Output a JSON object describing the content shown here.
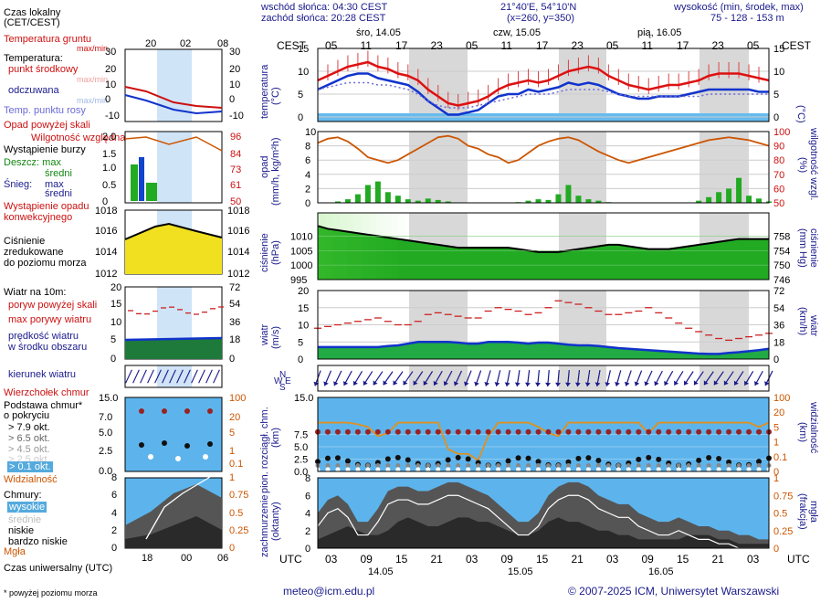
{
  "header": {
    "sunrise": "wschód słońca: 04:30 CEST",
    "sunset": "zachód słońca: 20:28 CEST",
    "coords": "21°40'E, 54°10'N",
    "grid": "(x=260, y=350)",
    "elev_title": "wysokość (min, środek, max)",
    "elev_values": "75 - 128 - 153 m",
    "tz_left": "CEST",
    "tz_right": "CEST",
    "days": [
      "śro, 14.05",
      "czw, 15.05",
      "pią, 16.05"
    ],
    "top_hours": [
      "05",
      "11",
      "17",
      "23",
      "05",
      "11",
      "17",
      "23",
      "05",
      "11",
      "17",
      "23",
      "05"
    ],
    "bottom_hours": [
      "03",
      "09",
      "15",
      "21",
      "03",
      "09",
      "15",
      "21",
      "03",
      "09",
      "15",
      "21",
      "03"
    ],
    "bottom_days": [
      "14.05",
      "15.05",
      "16.05"
    ],
    "utc_left": "UTC",
    "utc_right": "UTC"
  },
  "legend": {
    "local_time": "Czas lokalny",
    "local_time2": "(CET/CEST)",
    "local_hours": [
      "20",
      "02",
      "08"
    ],
    "ground_temp": "Temperatura gruntu",
    "maxmin": "max/min",
    "temperature": "Temperatura:",
    "center_point": "punkt środkowy",
    "maxmin2": "max/min",
    "felt": "odczuwana",
    "maxmin3": "max/min",
    "dew": "Temp. punktu rosy",
    "precip_above": "Opad powyżej skali",
    "humidity": "Wilgotność względna",
    "storm": "Wystąpienie burzy",
    "rain": "Deszcz: max",
    "rain_mid": "średni",
    "snow": "Śnieg:",
    "snow_max": "max",
    "snow_mid": "średni",
    "convective": "Wystąpienie opadu",
    "convective2": "konwekcyjnego",
    "pressure1": "Ciśnienie",
    "pressure2": "zredukowane",
    "pressure3": "do poziomu morza",
    "wind_title": "Wiatr na 10m:",
    "gust_above": "poryw powyżej skali",
    "gust_max": "max porywy wiatru",
    "wind_speed": "prędkość wiatru",
    "wind_speed2": "w środku obszaru",
    "wind_dir": "kierunek wiatru",
    "cloud_top": "Wierzchołek chmur",
    "cloud_base": "Podstawa chmur*",
    "cover": "o pokryciu",
    "okt79": "> 7.9 okt.",
    "okt65": "> 6.5 okt.",
    "okt45": "> 4.5 okt.",
    "okt25": "> 2.5 okt.",
    "okt01": "> 0.1 okt.",
    "visibility": "Widzialność",
    "clouds": "Chmury:",
    "high": "wysokie",
    "mid": "średnie",
    "low": "niskie",
    "very_low": "bardzo niskie",
    "fog": "Mgła",
    "utc": "Czas uniwersalny (UTC)",
    "utc_hours": [
      "18",
      "00",
      "06"
    ],
    "footnote": "* powyżej poziomu morza"
  },
  "axis_labels": {
    "temp_l": "temperatura",
    "temp_l2": "(°C)",
    "temp_r": "(°C)",
    "precip_l": "opad",
    "precip_l2": "(mm/h, kg/m²h)",
    "precip_r": "(%)",
    "precip_r2": "wilgotność wzgl.",
    "press_l": "ciśnienie",
    "press_l2": "(hPa)",
    "press_r": "(mm Hg)",
    "press_r2": "ciśnienie",
    "wind_l": "wiatr",
    "wind_l2": "(m/s)",
    "wind_r": "(km/h)",
    "wind_r2": "wiatr",
    "cloud_l": "pion. rozciągł. chm.",
    "cloud_l2": "(km)",
    "cloud_r": "(km)",
    "cloud_r2": "widzialność",
    "cov_l": "zachmurzenie",
    "cov_l2": "(oktanty)",
    "cov_r": "(frakcja)",
    "cov_r2": "mgła"
  },
  "footer": {
    "email": "meteo@icm.edu.pl",
    "copyright": "© 2007-2025 ICM, Uniwersytet Warszawski"
  },
  "colors": {
    "navy": "#1a1a8c",
    "red": "#cc1111",
    "green": "#118811",
    "orange": "#cc5500",
    "sky": "#66bbee",
    "night": "#d8d8d8"
  },
  "chart_data": [
    {
      "type": "line",
      "name": "temperature",
      "ylim": [
        -1,
        15
      ],
      "yticks": [
        0,
        5,
        10,
        15
      ],
      "series": [
        {
          "values": [
            8,
            9,
            10,
            11,
            11.5,
            12,
            11,
            10.5,
            9.5,
            9,
            8,
            6,
            4.5,
            3,
            2.5,
            3,
            3.5,
            4.5,
            6,
            7,
            7.5,
            8,
            7.5,
            8,
            9,
            10,
            10.5,
            11,
            10.5,
            9,
            8,
            7,
            6.5,
            6,
            6.5,
            7,
            7,
            7.5,
            8,
            9,
            9.5,
            9.5,
            9.5,
            9,
            8.5,
            8
          ]
        },
        {
          "values": [
            6,
            7,
            8,
            9,
            9.5,
            9.5,
            8.5,
            8,
            7.5,
            7,
            5.5,
            3.5,
            2,
            0.5,
            0.5,
            1,
            1.5,
            3,
            4.5,
            5,
            5,
            6,
            5.5,
            6,
            6.5,
            7.5,
            7,
            7.5,
            7,
            6,
            5,
            4.5,
            4,
            4,
            4.5,
            4.5,
            4.5,
            5,
            5.5,
            6,
            6,
            6,
            6,
            6,
            5.5,
            5.5
          ]
        },
        {
          "values": [
            6,
            6.5,
            7,
            7.5,
            7.5,
            7.5,
            7,
            7,
            6.5,
            6,
            5,
            3.5,
            2.5,
            2,
            2,
            2,
            2.5,
            3,
            3.5,
            4,
            4.5,
            5,
            5,
            5,
            5.5,
            6,
            6,
            6,
            6,
            5.5,
            5,
            4.5,
            4.5,
            4.5,
            4.5,
            4.5,
            4.5,
            4.5,
            4.5,
            5,
            5,
            5,
            5,
            5,
            5,
            5
          ]
        }
      ]
    },
    {
      "type": "bar",
      "name": "precipitation",
      "ylim": [
        0,
        10
      ],
      "yticks": [
        0,
        2,
        4,
        6,
        8,
        10
      ],
      "y2ticks": [
        50,
        60,
        70,
        80,
        90,
        100
      ],
      "values": [
        0,
        0,
        0.2,
        0.5,
        1.2,
        2.5,
        3,
        1.5,
        1,
        0.5,
        0.3,
        0.6,
        0.4,
        0.2,
        0,
        0,
        0,
        0,
        0,
        0,
        0.1,
        0.3,
        0.5,
        0.4,
        1.2,
        2.5,
        1,
        0.5,
        0.3,
        0.1,
        0,
        0,
        0,
        0,
        0,
        0,
        0,
        0,
        0.3,
        0.8,
        1.5,
        2,
        3.5,
        1,
        0.6,
        0.2
      ],
      "humidity": [
        92,
        95,
        96,
        93,
        88,
        82,
        80,
        78,
        80,
        84,
        88,
        92,
        96,
        97,
        95,
        90,
        88,
        84,
        82,
        78,
        80,
        85,
        90,
        93,
        95,
        96,
        94,
        90,
        86,
        83,
        80,
        78,
        80,
        82,
        84,
        86,
        88,
        90,
        92,
        94,
        95,
        96,
        95,
        94,
        92,
        90
      ]
    },
    {
      "type": "area",
      "name": "pressure",
      "ylim": [
        995,
        1018
      ],
      "yticks": [
        995,
        1000,
        1005,
        1010
      ],
      "y2ticks": [
        746,
        750,
        754,
        758
      ],
      "values": [
        1013.5,
        1012.5,
        1012,
        1011.5,
        1011,
        1010.5,
        1010,
        1009.5,
        1009,
        1008.5,
        1008,
        1007.5,
        1007,
        1006.5,
        1006,
        1006,
        1006,
        1006,
        1006,
        1006,
        1005.5,
        1005,
        1004.5,
        1004.5,
        1004.5,
        1005,
        1005.5,
        1006,
        1006.5,
        1007,
        1007,
        1006.5,
        1006,
        1005.5,
        1005.5,
        1005.5,
        1006,
        1006.5,
        1007,
        1007.5,
        1008,
        1008.5,
        1009,
        1009,
        1009,
        1009
      ]
    },
    {
      "type": "line",
      "name": "wind",
      "ylim": [
        0,
        20
      ],
      "yticks": [
        0,
        5,
        10,
        15,
        20
      ],
      "y2ticks": [
        0,
        18,
        36,
        54,
        72
      ],
      "series": [
        {
          "values": [
            9,
            9.5,
            10,
            10.5,
            11,
            11.5,
            12,
            11,
            10,
            10,
            11,
            13,
            13.5,
            13,
            12.5,
            12,
            12,
            14,
            15,
            14.5,
            14,
            13,
            13.5,
            15,
            17,
            16.5,
            16,
            15,
            14,
            13,
            13,
            13.5,
            14,
            15,
            13.5,
            12,
            10.5,
            9,
            8,
            7,
            6,
            5.5,
            6,
            6.5,
            7,
            7.5
          ]
        },
        {
          "values": [
            3.5,
            3.5,
            3.5,
            3.5,
            3.5,
            3.5,
            3.5,
            3.8,
            4,
            4.5,
            5,
            5,
            5,
            5,
            4.8,
            4.5,
            4.5,
            5,
            5,
            5,
            4.8,
            4.5,
            4.8,
            4.8,
            4.5,
            4.2,
            4,
            4,
            3.8,
            3.5,
            3.2,
            3,
            2.8,
            2.6,
            2.4,
            2.2,
            2,
            1.8,
            1.6,
            1.5,
            1.5,
            1.8,
            2,
            2.3,
            2.6,
            3
          ]
        }
      ]
    },
    {
      "type": "scatter",
      "name": "cloud_base_and_visibility",
      "ylim": [
        0,
        15
      ],
      "yticks": [
        0,
        2.5,
        5,
        7.5,
        15
      ],
      "y2ticks": [
        0,
        0.1,
        1,
        5,
        20,
        100
      ],
      "values": [
        20,
        20,
        20,
        20,
        18,
        15,
        8,
        10,
        20,
        20,
        20,
        20,
        20,
        3,
        2,
        2,
        1,
        8,
        20,
        20,
        20,
        20,
        15,
        10,
        8,
        20,
        20,
        20,
        20,
        20,
        20,
        20,
        20,
        10,
        20,
        20,
        20,
        20,
        20,
        20,
        20,
        20,
        20,
        20,
        15,
        20
      ]
    },
    {
      "type": "area",
      "name": "cloud_cover",
      "ylim": [
        0,
        8
      ],
      "yticks": [
        0,
        2,
        4,
        6,
        8
      ],
      "y2ticks": [
        0,
        0.25,
        0.5,
        0.75,
        1
      ],
      "series": [
        {
          "values": [
            4,
            5.5,
            6,
            5,
            3,
            3,
            4.5,
            6.5,
            7,
            7,
            6.5,
            6.5,
            7,
            7.5,
            7.5,
            7,
            6.5,
            6,
            5,
            4,
            3,
            3,
            4,
            6,
            7,
            7.5,
            7.5,
            7,
            6,
            5.5,
            5,
            5,
            4,
            3.5,
            3,
            3,
            3.5,
            3,
            2.5,
            2.5,
            2,
            2,
            1.5,
            1.5,
            1,
            1
          ]
        },
        {
          "values": [
            1,
            1.5,
            2,
            2.5,
            2,
            1.5,
            1.5,
            2,
            3,
            3.5,
            3,
            2.5,
            2.5,
            3,
            3.5,
            3.5,
            3,
            3,
            2.5,
            2,
            1.5,
            1.5,
            2,
            3,
            3.5,
            3,
            3,
            2.5,
            2,
            2,
            1.5,
            1.5,
            1,
            1,
            1,
            1,
            1,
            1.5,
            1.5,
            1.5,
            1,
            1,
            0.5,
            0.5,
            0.5,
            0.5
          ]
        }
      ]
    }
  ]
}
